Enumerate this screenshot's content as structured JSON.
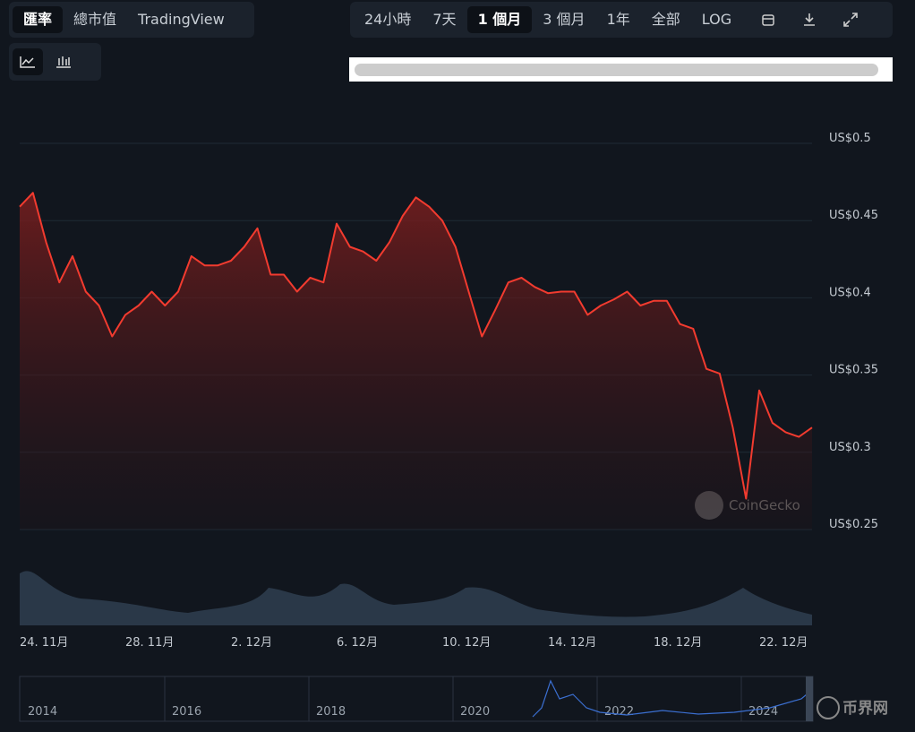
{
  "tabs": [
    "匯率",
    "總市值",
    "TradingView"
  ],
  "ranges": [
    "24小時",
    "7天",
    "1 個月",
    "3 個月",
    "1年",
    "全部",
    "LOG"
  ],
  "watermark": "CoinGecko",
  "logo": "币界网",
  "navigator_labels": [
    "2014",
    "2016",
    "2018",
    "2020",
    "2022",
    "2024"
  ],
  "chart_data": {
    "type": "line",
    "categories": [
      "24. 11月",
      null,
      null,
      null,
      null,
      null,
      null,
      null,
      "28. 11月",
      null,
      null,
      null,
      null,
      null,
      null,
      null,
      "2. 12月",
      null,
      null,
      null,
      null,
      null,
      null,
      null,
      "6. 12月",
      null,
      null,
      null,
      null,
      null,
      null,
      null,
      "10. 12月",
      null,
      null,
      null,
      null,
      null,
      null,
      null,
      "14. 12月",
      null,
      null,
      null,
      null,
      null,
      null,
      null,
      "18. 12月",
      null,
      null,
      null,
      null,
      null,
      null,
      null,
      "22. 12月",
      null,
      null,
      null,
      null
    ],
    "values": [
      0.459,
      0.468,
      0.436,
      0.41,
      0.427,
      0.404,
      0.395,
      0.375,
      0.389,
      0.395,
      0.404,
      0.395,
      0.404,
      0.427,
      0.421,
      0.421,
      0.424,
      0.433,
      0.445,
      0.415,
      0.415,
      0.404,
      0.413,
      0.41,
      0.448,
      0.433,
      0.43,
      0.424,
      0.436,
      0.453,
      0.465,
      0.459,
      0.45,
      0.433,
      0.404,
      0.375,
      0.392,
      0.41,
      0.413,
      0.407,
      0.403,
      0.404,
      0.404,
      0.389,
      0.395,
      0.399,
      0.404,
      0.395,
      0.398,
      0.398,
      0.383,
      0.38,
      0.354,
      0.351,
      0.316,
      0.27,
      0.34,
      0.319,
      0.313,
      0.31,
      0.316
    ],
    "color": "#f23b2f",
    "ylim": [
      0.25,
      0.5
    ],
    "yticks": [
      {
        "value": 0.5,
        "label": "US$0.5"
      },
      {
        "value": 0.45,
        "label": "US$0.45"
      },
      {
        "value": 0.4,
        "label": "US$0.4"
      },
      {
        "value": 0.35,
        "label": "US$0.35"
      },
      {
        "value": 0.3,
        "label": "US$0.3"
      },
      {
        "value": 0.25,
        "label": "US$0.25"
      }
    ],
    "grid": true
  }
}
